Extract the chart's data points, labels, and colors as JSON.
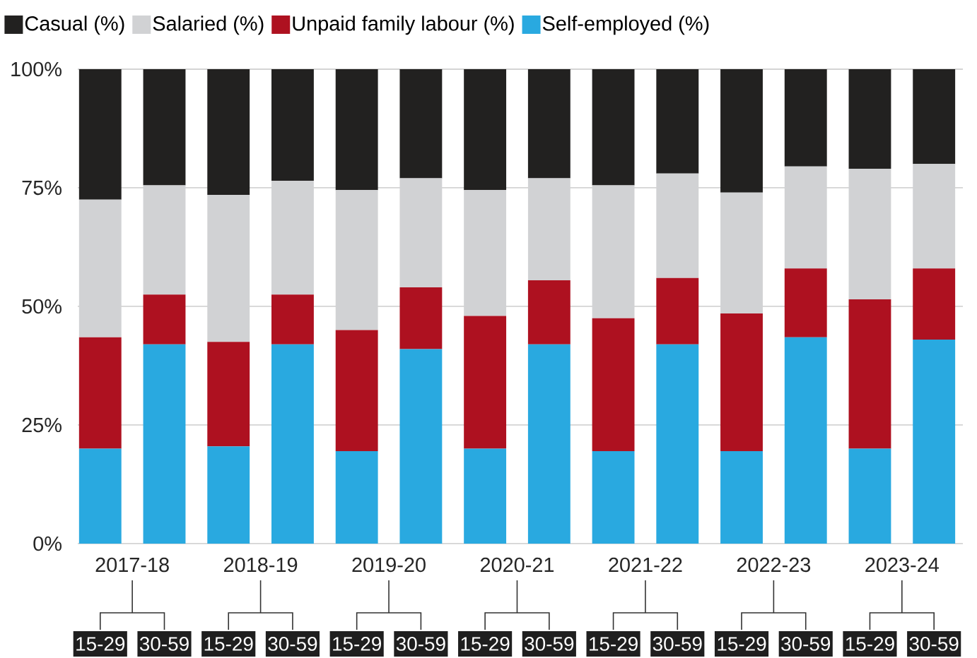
{
  "chart_data": {
    "type": "bar",
    "stacked": true,
    "categories": [
      "15-29",
      "30-59",
      "15-29",
      "30-59",
      "15-29",
      "30-59",
      "15-29",
      "30-59",
      "15-29",
      "30-59",
      "15-29",
      "30-59",
      "15-29",
      "30-59"
    ],
    "annotations": [
      "2017-18",
      "2018-19",
      "2019-20",
      "2020-21",
      "2021-22",
      "2022-23",
      "2023-24"
    ],
    "series": [
      {
        "name": "Self-employed (%)",
        "color": "#29a9e0",
        "values": [
          20,
          42,
          20.5,
          42,
          19.5,
          41,
          20,
          42,
          19.5,
          42,
          19.5,
          43.5,
          20,
          43
        ]
      },
      {
        "name": "Unpaid family labour (%)",
        "color": "#ae1120",
        "values": [
          23.5,
          10.5,
          22,
          10.5,
          25.5,
          13,
          28,
          13.5,
          28,
          14,
          29,
          14.5,
          31.5,
          15
        ]
      },
      {
        "name": "Salaried (%)",
        "color": "#d1d2d4",
        "values": [
          29,
          23,
          31,
          24,
          29.5,
          23,
          26.5,
          21.5,
          28,
          22,
          25.5,
          21.5,
          27.5,
          22
        ]
      },
      {
        "name": "Casual (%)",
        "color": "#222120",
        "values": [
          27.5,
          24.5,
          26.5,
          23.5,
          25.5,
          23,
          25.5,
          23,
          24.5,
          22,
          26,
          20.5,
          21,
          20
        ]
      }
    ],
    "ylim": [
      0,
      100
    ],
    "yticks": [
      {
        "value": 0,
        "label": "0%"
      },
      {
        "value": 25,
        "label": "25%"
      },
      {
        "value": 50,
        "label": "50%"
      },
      {
        "value": 75,
        "label": "75%"
      },
      {
        "value": 100,
        "label": "100%"
      }
    ],
    "grid": "y",
    "legend": "top"
  }
}
